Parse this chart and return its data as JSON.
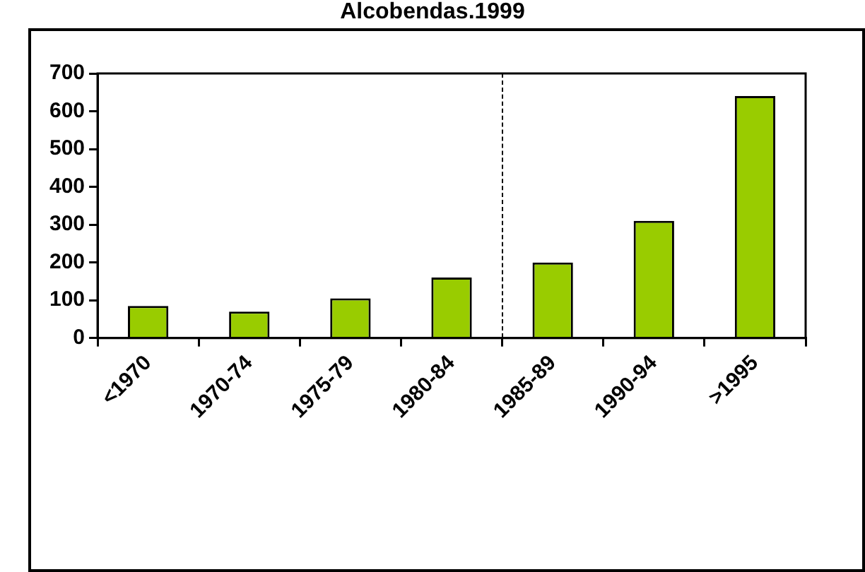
{
  "chart_data": {
    "type": "bar",
    "title": "Alcobendas.1999",
    "categories": [
      "<1970",
      "1970-74",
      "1975-79",
      "1980-84",
      "1985-89",
      "1990-94",
      ">1995"
    ],
    "values": [
      85,
      70,
      105,
      160,
      200,
      310,
      640
    ],
    "color": "#99cc00",
    "ylim": [
      0,
      700
    ],
    "yticks": [
      0,
      100,
      200,
      300,
      400,
      500,
      600,
      700
    ],
    "grid": false,
    "legend": false
  }
}
